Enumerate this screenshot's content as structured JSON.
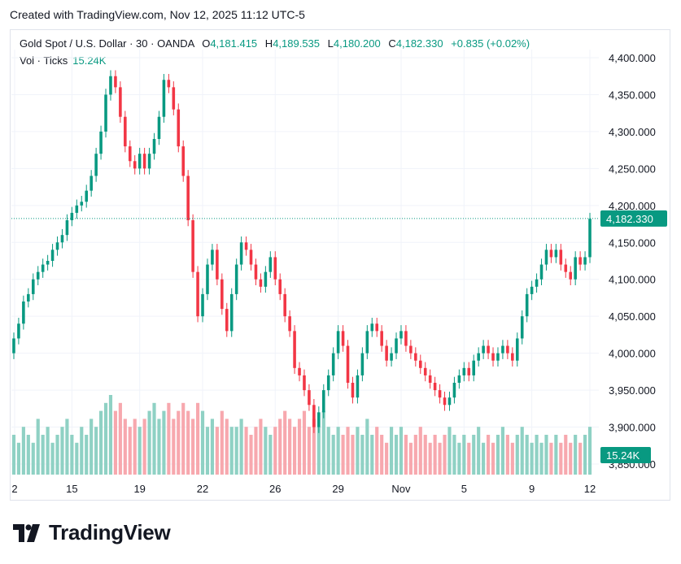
{
  "header": {
    "created": "Created with TradingView.com, Nov 12, 2025 11:12 UTC-5"
  },
  "legend": {
    "symbol": "Gold Spot / U.S. Dollar · 30 · OANDA",
    "o_label": "O",
    "o_value": "4,181.415",
    "h_label": "H",
    "h_value": "4,189.535",
    "l_label": "L",
    "l_value": "4,180.200",
    "c_label": "C",
    "c_value": "4,182.330",
    "change": "+0.835 (+0.02%)",
    "vol_label": "Vol · Ticks",
    "vol_value": "15.24K"
  },
  "footer": {
    "brand": "TradingView"
  },
  "colors": {
    "up": "#089981",
    "down": "#f23645",
    "up_vol": "#8fd1c4",
    "down_vol": "#f7a8ae",
    "grid": "#f0f3fa"
  },
  "chart_data": {
    "type": "candlestick",
    "symbol": "XAUUSD",
    "interval": "30",
    "ylim": [
      3825,
      4420
    ],
    "y_ticks": [
      3850,
      3900,
      3950,
      4000,
      4050,
      4100,
      4150,
      4200,
      4250,
      4300,
      4350,
      4400
    ],
    "y_tick_labels": [
      "3,850.000",
      "3,900.000",
      "3,950.000",
      "4,000.000",
      "4,050.000",
      "4,100.000",
      "4,150.000",
      "4,200.000",
      "4,250.000",
      "4,300.000",
      "4,350.000",
      "4,400.000"
    ],
    "x_ticks": [
      {
        "label": "2",
        "i": 0
      },
      {
        "label": "15",
        "i": 12
      },
      {
        "label": "19",
        "i": 26
      },
      {
        "label": "22",
        "i": 39
      },
      {
        "label": "26",
        "i": 54
      },
      {
        "label": "29",
        "i": 67
      },
      {
        "label": "Nov",
        "i": 80
      },
      {
        "label": "5",
        "i": 93
      },
      {
        "label": "9",
        "i": 107
      },
      {
        "label": "12",
        "i": 119
      }
    ],
    "last_price": 4182.33,
    "last_price_label": "4,182.330",
    "last_volume_label": "15.24K",
    "series": [
      {
        "name": "Gold Spot / U.S. Dollar",
        "close": [
          4020,
          4040,
          4070,
          4080,
          4100,
          4110,
          4120,
          4125,
          4140,
          4150,
          4160,
          4180,
          4190,
          4200,
          4205,
          4220,
          4240,
          4270,
          4300,
          4350,
          4375,
          4360,
          4320,
          4280,
          4260,
          4250,
          4270,
          4250,
          4270,
          4290,
          4320,
          4370,
          4360,
          4330,
          4280,
          4240,
          4180,
          4110,
          4050,
          4080,
          4120,
          4140,
          4100,
          4060,
          4030,
          4080,
          4120,
          4150,
          4140,
          4120,
          4100,
          4090,
          4110,
          4130,
          4100,
          4080,
          4050,
          4030,
          3980,
          3970,
          3950,
          3930,
          3900,
          3920,
          3950,
          3970,
          4000,
          4030,
          4010,
          3960,
          3940,
          3970,
          4000,
          4030,
          4040,
          4030,
          4010,
          3990,
          4000,
          4020,
          4030,
          4010,
          4000,
          3990,
          3980,
          3970,
          3960,
          3950,
          3940,
          3930,
          3940,
          3960,
          3970,
          3980,
          3970,
          3990,
          4000,
          4010,
          4000,
          3990,
          4000,
          4010,
          4000,
          3990,
          4020,
          4050,
          4080,
          4090,
          4100,
          4120,
          4140,
          4130,
          4140,
          4120,
          4110,
          4100,
          4130,
          4120,
          4130,
          4182
        ]
      }
    ],
    "volume_series": [
      {
        "name": "Vol · Ticks",
        "values": [
          0.5,
          0.4,
          0.6,
          0.5,
          0.4,
          0.7,
          0.5,
          0.6,
          0.4,
          0.5,
          0.6,
          0.7,
          0.5,
          0.4,
          0.6,
          0.5,
          0.7,
          0.6,
          0.8,
          0.9,
          1.0,
          0.8,
          0.9,
          0.7,
          0.6,
          0.7,
          0.6,
          0.7,
          0.8,
          0.9,
          0.7,
          0.8,
          0.9,
          0.7,
          0.8,
          0.9,
          0.8,
          0.7,
          0.9,
          0.8,
          0.6,
          0.7,
          0.6,
          0.8,
          0.7,
          0.6,
          0.6,
          0.7,
          0.6,
          0.5,
          0.6,
          0.7,
          0.6,
          0.5,
          0.6,
          0.7,
          0.8,
          0.7,
          0.6,
          0.7,
          0.8,
          0.6,
          0.7,
          0.6,
          0.8,
          0.6,
          0.5,
          0.6,
          0.5,
          0.6,
          0.5,
          0.6,
          0.5,
          0.7,
          0.5,
          0.6,
          0.5,
          0.4,
          0.6,
          0.5,
          0.6,
          0.5,
          0.4,
          0.5,
          0.6,
          0.5,
          0.4,
          0.5,
          0.4,
          0.5,
          0.6,
          0.5,
          0.4,
          0.5,
          0.4,
          0.5,
          0.6,
          0.4,
          0.5,
          0.4,
          0.5,
          0.6,
          0.5,
          0.4,
          0.5,
          0.6,
          0.5,
          0.4,
          0.5,
          0.4,
          0.5,
          0.4,
          0.5,
          0.4,
          0.5,
          0.4,
          0.5,
          0.4,
          0.5,
          0.6
        ]
      }
    ],
    "grid": true
  }
}
